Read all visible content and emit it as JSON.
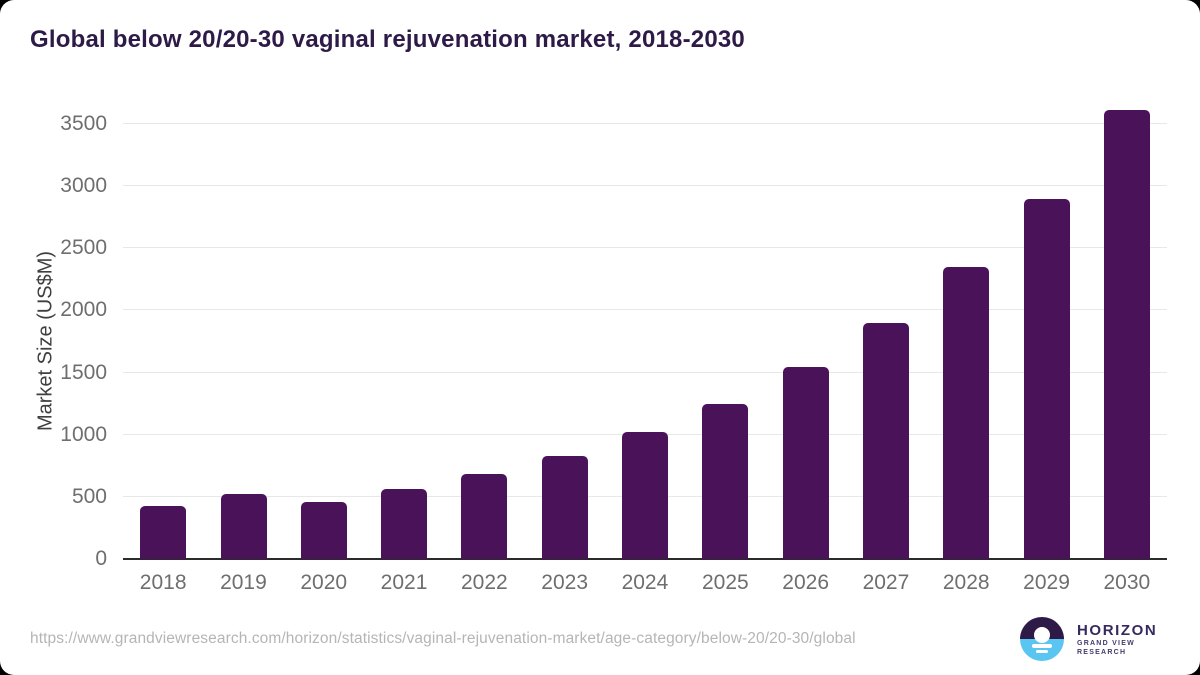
{
  "chart_data": {
    "type": "bar",
    "title": "Global below 20/20-30 vaginal rejuvenation market, 2018-2030",
    "categories": [
      "2018",
      "2019",
      "2020",
      "2021",
      "2022",
      "2023",
      "2024",
      "2025",
      "2026",
      "2027",
      "2028",
      "2029",
      "2030"
    ],
    "values": [
      430,
      525,
      455,
      560,
      685,
      830,
      1025,
      1250,
      1545,
      1900,
      2350,
      2900,
      3610
    ],
    "ylabel": "Market Size (US$M)",
    "xlabel": "",
    "yticks": [
      0,
      500,
      1000,
      1500,
      2000,
      2500,
      3000,
      3500
    ],
    "ylim": [
      0,
      3500
    ],
    "grid": true,
    "legend": "none",
    "bar_color": "#4a1259"
  },
  "colors": {
    "bar": "#4a1259",
    "title": "#2e1a47",
    "tick": "#6e6e6e",
    "grid": "#e8e8e8",
    "axis": "#2b2b2b",
    "url": "#b5b5b5",
    "logo_purple": "#2e1a47",
    "logo_blue": "#5bc5f2",
    "logo_text": "#37295e"
  },
  "footer": {
    "url": "https://www.grandviewresearch.com/horizon/statistics/vaginal-rejuvenation-market/age-category/below-20/20-30/global",
    "logo": {
      "brand": "HORIZON",
      "subtitle": "GRAND VIEW RESEARCH"
    }
  }
}
